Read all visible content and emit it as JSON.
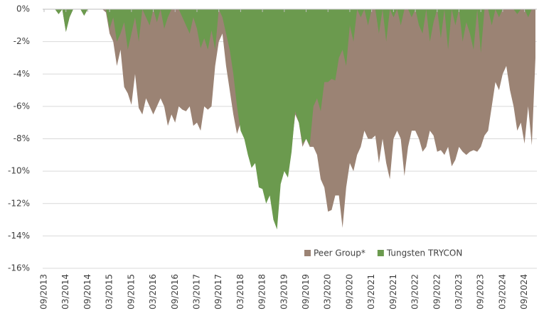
{
  "chart_data": {
    "type": "area",
    "categories": [
      "09/2013",
      null,
      null,
      null,
      null,
      null,
      "03/2014",
      null,
      null,
      null,
      null,
      null,
      "09/2014",
      null,
      null,
      null,
      null,
      null,
      "03/2015",
      null,
      null,
      null,
      null,
      null,
      "09/2015",
      null,
      null,
      null,
      null,
      null,
      "03/2016",
      null,
      null,
      null,
      null,
      null,
      "09/2016",
      null,
      null,
      null,
      null,
      null,
      "03/2017",
      null,
      null,
      null,
      null,
      null,
      "09/2017",
      null,
      null,
      null,
      null,
      null,
      "03/2018",
      null,
      null,
      null,
      null,
      null,
      "09/2018",
      null,
      null,
      null,
      null,
      null,
      "03/2019",
      null,
      null,
      null,
      null,
      null,
      "09/2019",
      null,
      null,
      null,
      null,
      null,
      "03/2020",
      null,
      null,
      null,
      null,
      null,
      "09/2020",
      null,
      null,
      null,
      null,
      null,
      "03/2021",
      null,
      null,
      null,
      null,
      null,
      "09/2021",
      null,
      null,
      null,
      null,
      null,
      "03/2022",
      null,
      null,
      null,
      null,
      null,
      "09/2022",
      null,
      null,
      null,
      null,
      null,
      "03/2023",
      null,
      null,
      null,
      null,
      null,
      "09/2023",
      null,
      null,
      null,
      null,
      null,
      "03/2024",
      null,
      null,
      null,
      null,
      null,
      "09/2024",
      null,
      null,
      null
    ],
    "series": [
      {
        "name": "Peer Group*",
        "color": "#9b8374",
        "values": [
          0,
          0,
          0,
          0,
          -0.3,
          0,
          -1.4,
          -0.5,
          0,
          0,
          0,
          -0.4,
          0,
          0,
          0,
          0,
          0,
          -0.2,
          -1.5,
          -2,
          -3.5,
          -2.5,
          -4.8,
          -5.2,
          -5.9,
          -4,
          -6.1,
          -6.5,
          -5.5,
          -6,
          -6.5,
          -6,
          -5.5,
          -6,
          -7.2,
          -6.5,
          -7,
          -6,
          -6.2,
          -6.3,
          -6,
          -7.2,
          -7,
          -7.5,
          -6,
          -6.2,
          -6,
          -3.5,
          -2,
          -1.5,
          -3.5,
          -5,
          -6.5,
          -7.7,
          -7,
          -7.5,
          -8.5,
          -9,
          -9,
          -10,
          -10.5,
          -11,
          -11,
          -12,
          -13,
          -10.5,
          -9.5,
          -9.5,
          -8.5,
          -6.5,
          -7,
          -8.5,
          -8,
          -8.5,
          -8.5,
          -9,
          -10.5,
          -11,
          -12.5,
          -12.4,
          -11.5,
          -11.5,
          -13.5,
          -11,
          -9.5,
          -10,
          -9,
          -8.5,
          -7.5,
          -8,
          -8,
          -7.8,
          -9.5,
          -8,
          -9.5,
          -10.5,
          -8,
          -7.5,
          -8,
          -10.3,
          -8.5,
          -7.5,
          -7.5,
          -8,
          -8.8,
          -8.5,
          -7.5,
          -7.8,
          -8.8,
          -8.7,
          -9,
          -8.5,
          -9.7,
          -9.3,
          -8.5,
          -8.8,
          -9,
          -8.8,
          -8.7,
          -8.8,
          -8.5,
          -7.8,
          -7.5,
          -6,
          -4.5,
          -5,
          -4,
          -3.5,
          -5,
          -6,
          -7.5,
          -7,
          -8.3,
          -6,
          -8.4,
          -3
        ]
      },
      {
        "name": "Tungsten TRYCON",
        "color": "#6b9a4e",
        "values": [
          0,
          0,
          0,
          0,
          -0.3,
          0,
          -1.4,
          -0.5,
          0,
          0,
          0,
          -0.4,
          0,
          0,
          0,
          0,
          0,
          0,
          -1.2,
          -0.5,
          -2,
          -1.5,
          -0.8,
          -2.5,
          -1.5,
          -0.5,
          -2,
          0,
          -0.5,
          -1,
          0,
          -0.8,
          0,
          -1.2,
          -0.5,
          0,
          0,
          0,
          -0.5,
          -1,
          -1.5,
          -0.5,
          -1.2,
          -2.4,
          -1.8,
          -2.5,
          -1.3,
          -2.5,
          0,
          -0.5,
          -1.5,
          -2.5,
          -4,
          -6,
          -7.5,
          -8,
          -9,
          -9.8,
          -9.5,
          -11,
          -11.1,
          -12,
          -11.5,
          -13,
          -13.6,
          -10.8,
          -10,
          -10.4,
          -8.8,
          -6.3,
          -7,
          -8.3,
          -8,
          -8.4,
          -6,
          -5.5,
          -6.3,
          -4.5,
          -4.5,
          -4.3,
          -4.4,
          -3,
          -2.5,
          -3.5,
          -1,
          -2,
          0,
          -0.5,
          0,
          -1,
          0,
          0,
          -1.5,
          0,
          -2,
          0,
          -0.5,
          0,
          -1,
          0,
          0,
          -0.5,
          0,
          -1,
          -1.5,
          0,
          -2,
          -0.8,
          0,
          -1.8,
          0,
          -2.5,
          0,
          -1,
          0,
          -2,
          -0.8,
          -1.5,
          -2.5,
          0,
          -2.7,
          0,
          0,
          -1,
          0,
          -0.5,
          0,
          0,
          0,
          0,
          -0.3,
          0,
          0,
          -0.5,
          0,
          0
        ]
      }
    ],
    "ylim": [
      -16,
      0
    ],
    "yticks": [
      {
        "value": 0,
        "label": "0%"
      },
      {
        "value": -2,
        "label": "-2%"
      },
      {
        "value": -4,
        "label": "-4%"
      },
      {
        "value": -6,
        "label": "-6%"
      },
      {
        "value": -8,
        "label": "-8%"
      },
      {
        "value": -10,
        "label": "-10%"
      },
      {
        "value": -12,
        "label": "-12%"
      },
      {
        "value": -14,
        "label": "-14%"
      },
      {
        "value": -16,
        "label": "-16%"
      }
    ],
    "grid": true,
    "legend": "bottom-right"
  }
}
